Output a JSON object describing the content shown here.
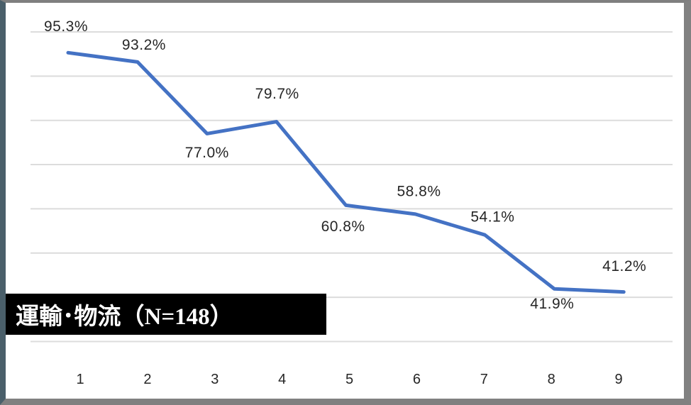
{
  "banner": {
    "label_main": "運輸･物流",
    "label_count": "（N=148）",
    "bg_color": "#000000",
    "text_color": "#ffffff"
  },
  "chart_data": {
    "type": "line",
    "title": "",
    "xlabel": "",
    "ylabel": "",
    "categories": [
      "1",
      "2",
      "3",
      "4",
      "5",
      "6",
      "7",
      "8",
      "9"
    ],
    "series": [
      {
        "name": "運輸･物流 (N=148)",
        "values": [
          95.3,
          93.2,
          77.0,
          79.7,
          60.8,
          58.8,
          54.1,
          41.9,
          41.2
        ]
      }
    ],
    "data_labels": [
      "95.3%",
      "93.2%",
      "77.0%",
      "79.7%",
      "60.8%",
      "58.8%",
      "54.1%",
      "41.9%",
      "41.2%"
    ],
    "label_placement": [
      "above",
      "above",
      "below",
      "above",
      "below",
      "above",
      "above",
      "below",
      "above"
    ],
    "ylim": [
      30,
      100
    ],
    "gridline_step": 10,
    "grid": true,
    "legend_position": "none",
    "line_color": "#4472C4",
    "gridline_color": "#DCDCDC",
    "label_color": "#262626",
    "axis_label_color": "#262626"
  }
}
